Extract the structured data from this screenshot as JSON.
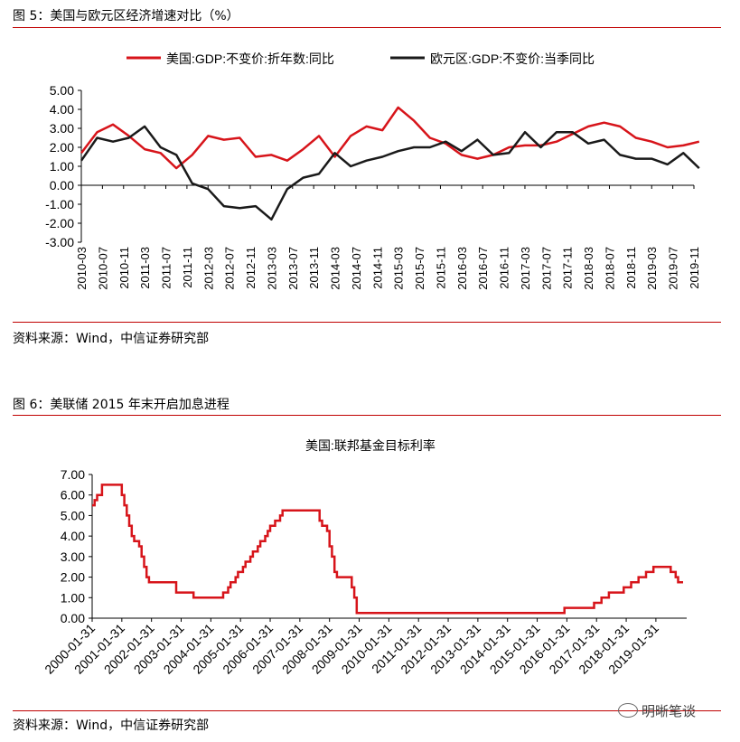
{
  "figure1": {
    "title": "图 5：美国与欧元区经济增速对比（%）",
    "source": "资料来源：Wind，中信证券研究部"
  },
  "figure2": {
    "title": "图 6：美联储 2015 年末开启加息进程",
    "source": "资料来源：Wind，中信证券研究部"
  },
  "watermark": "明晰笔谈",
  "colors": {
    "us": "#d7141a",
    "ez": "#1a1a1a",
    "rule": "#c00000"
  },
  "chart_data": [
    {
      "type": "line",
      "x_ticks": [
        "2010-03",
        "2010-07",
        "2010-11",
        "2011-03",
        "2011-07",
        "2011-11",
        "2012-03",
        "2012-07",
        "2012-11",
        "2013-03",
        "2013-07",
        "2013-11",
        "2014-03",
        "2014-07",
        "2014-11",
        "2015-03",
        "2015-07",
        "2015-11",
        "2016-03",
        "2016-07",
        "2016-11",
        "2017-03",
        "2017-07",
        "2017-11",
        "2018-03",
        "2018-07",
        "2018-11",
        "2019-03",
        "2019-07",
        "2019-11"
      ],
      "x": [
        "2010-03",
        "2010-06",
        "2010-09",
        "2010-12",
        "2011-03",
        "2011-06",
        "2011-09",
        "2011-12",
        "2012-03",
        "2012-06",
        "2012-09",
        "2012-12",
        "2013-03",
        "2013-06",
        "2013-09",
        "2013-12",
        "2014-03",
        "2014-06",
        "2014-09",
        "2014-12",
        "2015-03",
        "2015-06",
        "2015-09",
        "2015-12",
        "2016-03",
        "2016-06",
        "2016-09",
        "2016-12",
        "2017-03",
        "2017-06",
        "2017-09",
        "2017-12",
        "2018-03",
        "2018-06",
        "2018-09",
        "2018-12",
        "2019-03",
        "2019-06",
        "2019-09",
        "2019-12"
      ],
      "series": [
        {
          "name": "美国:GDP:不变价:折年数:同比",
          "values": [
            1.7,
            2.8,
            3.2,
            2.6,
            1.9,
            1.7,
            0.9,
            1.6,
            2.6,
            2.4,
            2.5,
            1.5,
            1.6,
            1.3,
            1.9,
            2.6,
            1.5,
            2.6,
            3.1,
            2.9,
            4.1,
            3.4,
            2.5,
            2.2,
            1.6,
            1.4,
            1.6,
            2.0,
            2.1,
            2.1,
            2.3,
            2.7,
            3.1,
            3.3,
            3.1,
            2.5,
            2.3,
            2.0,
            2.1,
            2.3
          ]
        },
        {
          "name": "欧元区:GDP:不变价:当季同比",
          "values": [
            1.3,
            2.5,
            2.3,
            2.5,
            3.1,
            2.0,
            1.6,
            0.1,
            -0.2,
            -1.1,
            -1.2,
            -1.1,
            -1.8,
            -0.2,
            0.4,
            0.6,
            1.7,
            1.0,
            1.3,
            1.5,
            1.8,
            2.0,
            2.0,
            2.3,
            1.8,
            2.4,
            1.6,
            1.7,
            2.8,
            2.0,
            2.8,
            2.8,
            2.2,
            2.4,
            1.6,
            1.4,
            1.4,
            1.1,
            1.7,
            0.9
          ]
        }
      ],
      "yticks": [
        "5.00",
        "4.00",
        "3.00",
        "2.00",
        "1.00",
        "0.00",
        "-1.00",
        "-2.00",
        "-3.00"
      ],
      "ylim": [
        -3,
        5
      ],
      "legend": "top",
      "grid": false
    },
    {
      "type": "line",
      "title": "美国:联邦基金目标利率",
      "x_ticks": [
        "2000-01-31",
        "2001-01-31",
        "2002-01-31",
        "2003-01-31",
        "2004-01-31",
        "2005-01-31",
        "2006-01-31",
        "2007-01-31",
        "2008-01-31",
        "2009-01-31",
        "2010-01-31",
        "2011-01-31",
        "2012-01-31",
        "2013-01-31",
        "2014-01-31",
        "2015-01-31",
        "2016-01-31",
        "2017-01-31",
        "2018-01-31",
        "2019-01-31"
      ],
      "step_points": [
        [
          "2000-01",
          5.5
        ],
        [
          "2000-02",
          5.75
        ],
        [
          "2000-03",
          6.0
        ],
        [
          "2000-05",
          6.5
        ],
        [
          "2001-01",
          6.0
        ],
        [
          "2001-02",
          5.5
        ],
        [
          "2001-03",
          5.0
        ],
        [
          "2001-04",
          4.5
        ],
        [
          "2001-05",
          4.0
        ],
        [
          "2001-06",
          3.75
        ],
        [
          "2001-08",
          3.5
        ],
        [
          "2001-09",
          3.0
        ],
        [
          "2001-10",
          2.5
        ],
        [
          "2001-11",
          2.0
        ],
        [
          "2001-12",
          1.75
        ],
        [
          "2002-11",
          1.25
        ],
        [
          "2003-06",
          1.0
        ],
        [
          "2004-06",
          1.25
        ],
        [
          "2004-08",
          1.5
        ],
        [
          "2004-09",
          1.75
        ],
        [
          "2004-11",
          2.0
        ],
        [
          "2004-12",
          2.25
        ],
        [
          "2005-02",
          2.5
        ],
        [
          "2005-03",
          2.75
        ],
        [
          "2005-05",
          3.0
        ],
        [
          "2005-06",
          3.25
        ],
        [
          "2005-08",
          3.5
        ],
        [
          "2005-09",
          3.75
        ],
        [
          "2005-11",
          4.0
        ],
        [
          "2005-12",
          4.25
        ],
        [
          "2006-01",
          4.5
        ],
        [
          "2006-03",
          4.75
        ],
        [
          "2006-05",
          5.0
        ],
        [
          "2006-06",
          5.25
        ],
        [
          "2007-09",
          4.75
        ],
        [
          "2007-10",
          4.5
        ],
        [
          "2007-12",
          4.25
        ],
        [
          "2008-01",
          3.5
        ],
        [
          "2008-02",
          3.0
        ],
        [
          "2008-03",
          2.25
        ],
        [
          "2008-04",
          2.0
        ],
        [
          "2008-10",
          1.5
        ],
        [
          "2008-11",
          1.0
        ],
        [
          "2008-12",
          0.25
        ],
        [
          "2015-12",
          0.5
        ],
        [
          "2016-12",
          0.75
        ],
        [
          "2017-03",
          1.0
        ],
        [
          "2017-06",
          1.25
        ],
        [
          "2017-12",
          1.5
        ],
        [
          "2018-03",
          1.75
        ],
        [
          "2018-06",
          2.0
        ],
        [
          "2018-09",
          2.25
        ],
        [
          "2018-12",
          2.5
        ],
        [
          "2019-07",
          2.25
        ],
        [
          "2019-09",
          2.0
        ],
        [
          "2019-10",
          1.75
        ],
        [
          "2019-12",
          1.75
        ]
      ],
      "yticks": [
        "7.00",
        "6.00",
        "5.00",
        "4.00",
        "3.00",
        "2.00",
        "1.00",
        "0.00"
      ],
      "ylim": [
        0,
        7
      ],
      "grid": false
    }
  ]
}
